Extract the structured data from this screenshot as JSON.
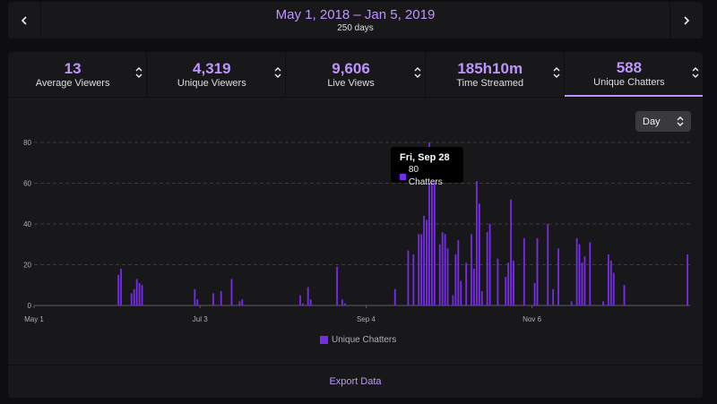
{
  "range": {
    "title": "May 1, 2018 – Jan 5, 2019",
    "subtitle": "250 days",
    "prev_icon": "chevron-left-icon",
    "next_icon": "chevron-right-icon"
  },
  "stats": [
    {
      "value": "13",
      "label": "Average Viewers"
    },
    {
      "value": "4,319",
      "label": "Unique Viewers"
    },
    {
      "value": "9,606",
      "label": "Live Views"
    },
    {
      "value": "185h10m",
      "label": "Time Streamed"
    },
    {
      "value": "588",
      "label": "Unique Chatters"
    }
  ],
  "active_stat": 4,
  "granularity": {
    "selected": "Day"
  },
  "tooltip": {
    "date": "Fri, Sep 28",
    "text": "80 Chatters"
  },
  "legend": {
    "label": "Unique Chatters"
  },
  "export_label": "Export Data",
  "colors": {
    "accent": "#bf94ff",
    "bar": "#772ce8",
    "panel": "#18181b",
    "background": "#0e0e10"
  },
  "chart_data": {
    "type": "bar",
    "x_start": "2018-05-01",
    "x_end": "2019-01-05",
    "ylim": [
      0,
      80
    ],
    "y_ticks": [
      0,
      20,
      40,
      60,
      80
    ],
    "x_ticks": [
      {
        "date": "2018-05-01",
        "label": "May 1"
      },
      {
        "date": "2018-07-03",
        "label": "Jul 3"
      },
      {
        "date": "2018-09-04",
        "label": "Sep 4"
      },
      {
        "date": "2018-11-06",
        "label": "Nov 6"
      }
    ],
    "grid": true,
    "series": [
      {
        "name": "Unique Chatters",
        "points": [
          {
            "date": "2018-06-02",
            "value": 15
          },
          {
            "date": "2018-06-03",
            "value": 18
          },
          {
            "date": "2018-06-07",
            "value": 6
          },
          {
            "date": "2018-06-08",
            "value": 8
          },
          {
            "date": "2018-06-09",
            "value": 13
          },
          {
            "date": "2018-06-10",
            "value": 11
          },
          {
            "date": "2018-06-11",
            "value": 10
          },
          {
            "date": "2018-07-01",
            "value": 8
          },
          {
            "date": "2018-07-02",
            "value": 3
          },
          {
            "date": "2018-07-08",
            "value": 6
          },
          {
            "date": "2018-07-11",
            "value": 7
          },
          {
            "date": "2018-07-15",
            "value": 13
          },
          {
            "date": "2018-07-18",
            "value": 2
          },
          {
            "date": "2018-07-19",
            "value": 3
          },
          {
            "date": "2018-08-10",
            "value": 5
          },
          {
            "date": "2018-08-11",
            "value": 1
          },
          {
            "date": "2018-08-13",
            "value": 9
          },
          {
            "date": "2018-08-14",
            "value": 3
          },
          {
            "date": "2018-08-24",
            "value": 19
          },
          {
            "date": "2018-08-26",
            "value": 3
          },
          {
            "date": "2018-08-27",
            "value": 1
          },
          {
            "date": "2018-09-15",
            "value": 8
          },
          {
            "date": "2018-09-20",
            "value": 27
          },
          {
            "date": "2018-09-22",
            "value": 25
          },
          {
            "date": "2018-09-24",
            "value": 35
          },
          {
            "date": "2018-09-25",
            "value": 35
          },
          {
            "date": "2018-09-26",
            "value": 44
          },
          {
            "date": "2018-09-27",
            "value": 42
          },
          {
            "date": "2018-09-28",
            "value": 80
          },
          {
            "date": "2018-09-29",
            "value": 65
          },
          {
            "date": "2018-09-30",
            "value": 70
          },
          {
            "date": "2018-10-02",
            "value": 30
          },
          {
            "date": "2018-10-03",
            "value": 36
          },
          {
            "date": "2018-10-04",
            "value": 35
          },
          {
            "date": "2018-10-05",
            "value": 28
          },
          {
            "date": "2018-10-07",
            "value": 5
          },
          {
            "date": "2018-10-08",
            "value": 25
          },
          {
            "date": "2018-10-09",
            "value": 32
          },
          {
            "date": "2018-10-10",
            "value": 12
          },
          {
            "date": "2018-10-12",
            "value": 21
          },
          {
            "date": "2018-10-14",
            "value": 35
          },
          {
            "date": "2018-10-15",
            "value": 18
          },
          {
            "date": "2018-10-16",
            "value": 61
          },
          {
            "date": "2018-10-17",
            "value": 50
          },
          {
            "date": "2018-10-18",
            "value": 7
          },
          {
            "date": "2018-10-20",
            "value": 36
          },
          {
            "date": "2018-10-21",
            "value": 40
          },
          {
            "date": "2018-10-24",
            "value": 23
          },
          {
            "date": "2018-10-27",
            "value": 14
          },
          {
            "date": "2018-10-28",
            "value": 21
          },
          {
            "date": "2018-10-29",
            "value": 52
          },
          {
            "date": "2018-10-30",
            "value": 22
          },
          {
            "date": "2018-11-03",
            "value": 33
          },
          {
            "date": "2018-11-07",
            "value": 11
          },
          {
            "date": "2018-11-08",
            "value": 33
          },
          {
            "date": "2018-11-12",
            "value": 40
          },
          {
            "date": "2018-11-14",
            "value": 8
          },
          {
            "date": "2018-11-16",
            "value": 28
          },
          {
            "date": "2018-11-21",
            "value": 2
          },
          {
            "date": "2018-11-23",
            "value": 33
          },
          {
            "date": "2018-11-24",
            "value": 30
          },
          {
            "date": "2018-11-25",
            "value": 21
          },
          {
            "date": "2018-11-26",
            "value": 24
          },
          {
            "date": "2018-11-28",
            "value": 31
          },
          {
            "date": "2018-12-03",
            "value": 2
          },
          {
            "date": "2018-12-05",
            "value": 25
          },
          {
            "date": "2018-12-06",
            "value": 22
          },
          {
            "date": "2018-12-07",
            "value": 16
          },
          {
            "date": "2018-12-11",
            "value": 10
          },
          {
            "date": "2019-01-04",
            "value": 25
          }
        ]
      }
    ]
  }
}
